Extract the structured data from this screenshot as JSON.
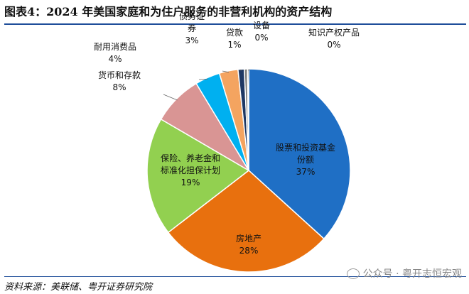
{
  "title": "图表4：2024 年美国家庭和为住户服务的非营利机构的资产结构",
  "source": "资料来源：美联储、粤开证券研究院",
  "watermark": "公众号 · 粤开志恒宏观",
  "chart_data": {
    "type": "pie",
    "start_angle_deg": 0,
    "direction": "clockwise",
    "slices": [
      {
        "name_lines": [
          "股票和投资基金",
          "份额"
        ],
        "value": 37,
        "label": "37%",
        "color": "#1f6fc5"
      },
      {
        "name_lines": [
          "房地产"
        ],
        "value": 28,
        "label": "28%",
        "color": "#e8700e"
      },
      {
        "name_lines": [
          "保险、养老金和",
          "标准化担保计划"
        ],
        "value": 19,
        "label": "19%",
        "color": "#92d050"
      },
      {
        "name_lines": [
          "货币和存款"
        ],
        "value": 8,
        "label": "8%",
        "color": "#d99594"
      },
      {
        "name_lines": [
          "耐用消费品"
        ],
        "value": 4,
        "label": "4%",
        "color": "#00b0f0"
      },
      {
        "name_lines": [
          "债务证",
          "券"
        ],
        "value": 3,
        "label": "3%",
        "color": "#f4a460"
      },
      {
        "name_lines": [
          "贷款"
        ],
        "value": 1,
        "label": "1%",
        "color": "#1f3864"
      },
      {
        "name_lines": [
          "设备"
        ],
        "value": 0.5,
        "label": "0%",
        "color": "#7f7f7f"
      },
      {
        "name_lines": [
          "知识产权产品"
        ],
        "value": 0.2,
        "label": "0%",
        "color": "#000000"
      }
    ]
  }
}
